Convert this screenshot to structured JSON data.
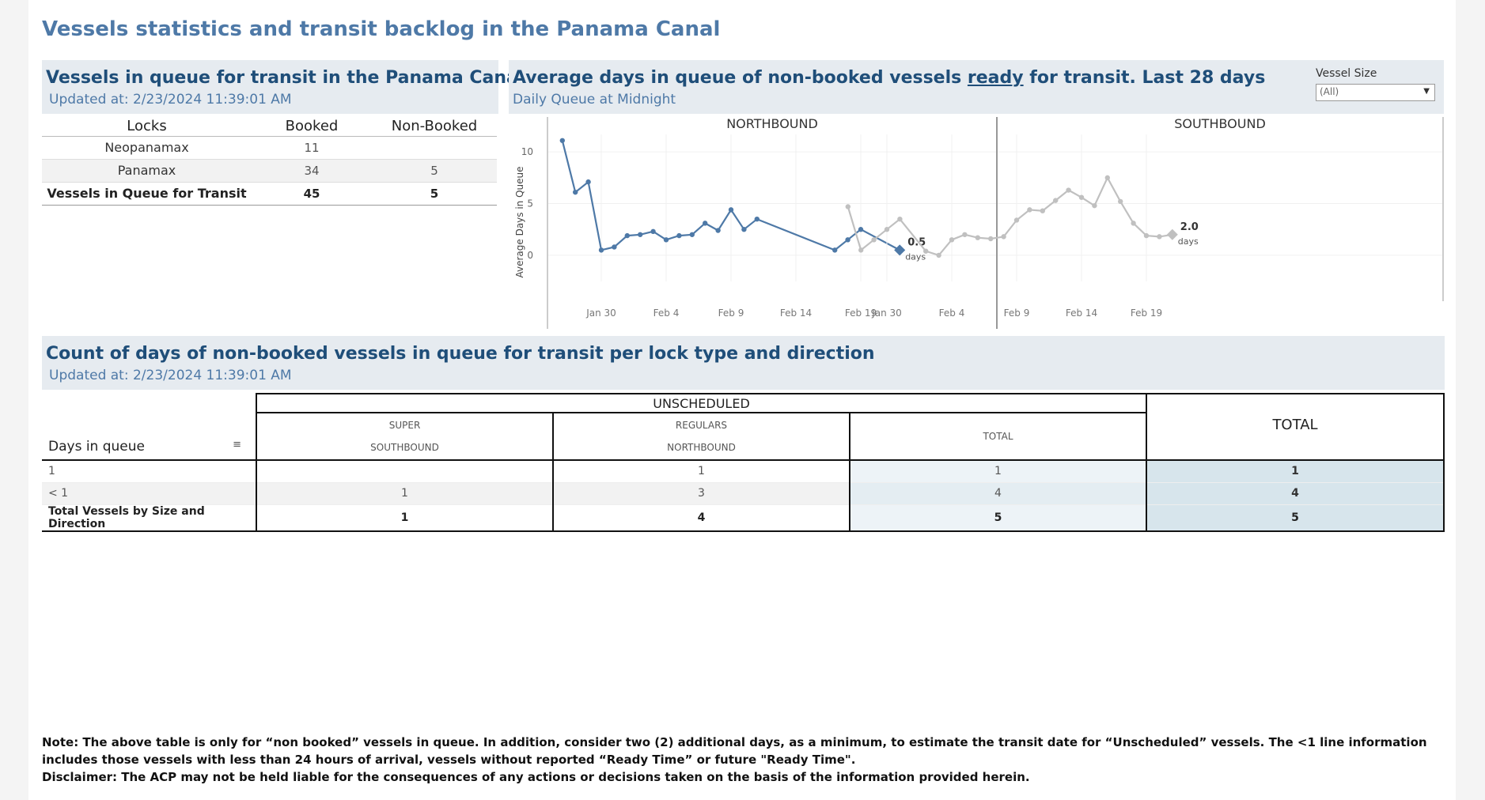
{
  "title": "Vessels statistics and transit backlog in the Panama Canal",
  "queue_panel": {
    "title": "Vessels in queue for transit in the Panama Canal",
    "updated": "Updated at:  2/23/2024 11:39:01 AM",
    "columns": [
      "Locks",
      "Booked",
      "Non-Booked"
    ],
    "rows": [
      {
        "lock": "Neopanamax",
        "booked": "11",
        "non_booked": ""
      },
      {
        "lock": "Panamax",
        "booked": "34",
        "non_booked": "5"
      },
      {
        "lock": "Vessels in Queue for Transit",
        "booked": "45",
        "non_booked": "5"
      }
    ]
  },
  "avg_panel": {
    "title_prefix": "Average days in queue of non-booked vessels ",
    "title_link": "ready",
    "title_suffix": " for transit. Last 28 days",
    "subtitle": "Daily Queue at Midnight",
    "filter_label": "Vessel Size",
    "filter_value": "(All)"
  },
  "chart_data": {
    "type": "line",
    "ylabel": "Average Days in Queue",
    "ylim": [
      -1,
      12
    ],
    "yticks": [
      0,
      5,
      10
    ],
    "x_tick_labels": [
      "Jan 30",
      "Feb 4",
      "Feb 9",
      "Feb 14",
      "Feb 19"
    ],
    "x_tick_days": [
      0,
      5,
      10,
      15,
      20
    ],
    "panels": [
      {
        "name": "NORTHBOUND",
        "color": "#4e79a7",
        "x_days": [
          -3,
          -2,
          -1,
          0,
          1,
          2,
          3,
          4,
          5,
          6,
          7,
          8,
          9,
          10,
          11,
          12,
          18,
          19,
          20,
          23
        ],
        "values": [
          11.1,
          6.1,
          7.1,
          0.5,
          0.8,
          1.9,
          2.0,
          2.3,
          1.5,
          1.9,
          2.0,
          3.1,
          2.4,
          4.4,
          2.5,
          3.5,
          0.5,
          1.5,
          2.5,
          0.5
        ],
        "end_label": "0.5",
        "end_unit": "days"
      },
      {
        "name": "SOUTHBOUND",
        "color": "#c0c0c0",
        "x_days": [
          -3,
          -2,
          -1,
          0,
          1,
          3,
          4,
          5,
          6,
          7,
          8,
          9,
          10,
          11,
          12,
          13,
          14,
          15,
          16,
          17,
          18,
          19,
          20,
          21,
          22
        ],
        "values": [
          4.7,
          0.5,
          1.5,
          2.5,
          3.5,
          0.4,
          0.0,
          1.5,
          2.0,
          1.7,
          1.6,
          1.8,
          3.4,
          4.4,
          4.3,
          5.3,
          6.3,
          5.6,
          4.8,
          7.5,
          5.2,
          3.1,
          1.9,
          1.8,
          2.0
        ],
        "end_label": "2.0",
        "end_unit": "days"
      }
    ]
  },
  "count_panel": {
    "title": "Count of days of non-booked vessels in queue for transit per lock type and direction",
    "updated": "Updated at:  2/23/2024 11:39:01 AM",
    "group_header": "UNSCHEDULED",
    "sub_headers": [
      {
        "top": "SUPER",
        "bottom": "SOUTHBOUND"
      },
      {
        "top": "REGULARS",
        "bottom": "NORTHBOUND"
      }
    ],
    "unscheduled_total_header": "TOTAL",
    "grand_total_header": "TOTAL",
    "row_header": "Days in queue",
    "rows": [
      {
        "label": "1",
        "super_sb": "",
        "reg_nb": "1",
        "unsched_total": "1",
        "total": "1"
      },
      {
        "label": "< 1",
        "super_sb": "1",
        "reg_nb": "3",
        "unsched_total": "4",
        "total": "4"
      },
      {
        "label": "Total Vessels by Size and Direction",
        "super_sb": "1",
        "reg_nb": "4",
        "unsched_total": "5",
        "total": "5"
      }
    ]
  },
  "notes": {
    "note": "Note:  The above table is only for “non booked” vessels in queue. In addition, consider two (2) additional days, as a minimum, to estimate the transit date for “Unscheduled” vessels.  The <1 line information includes those vessels with less than 24 hours of arrival, vessels without reported “Ready Time” or future \"Ready Time\".",
    "disclaimer": "Disclaimer: The ACP may not be held liable for the consequences of any actions or decisions taken on the basis of the information provided herein."
  }
}
